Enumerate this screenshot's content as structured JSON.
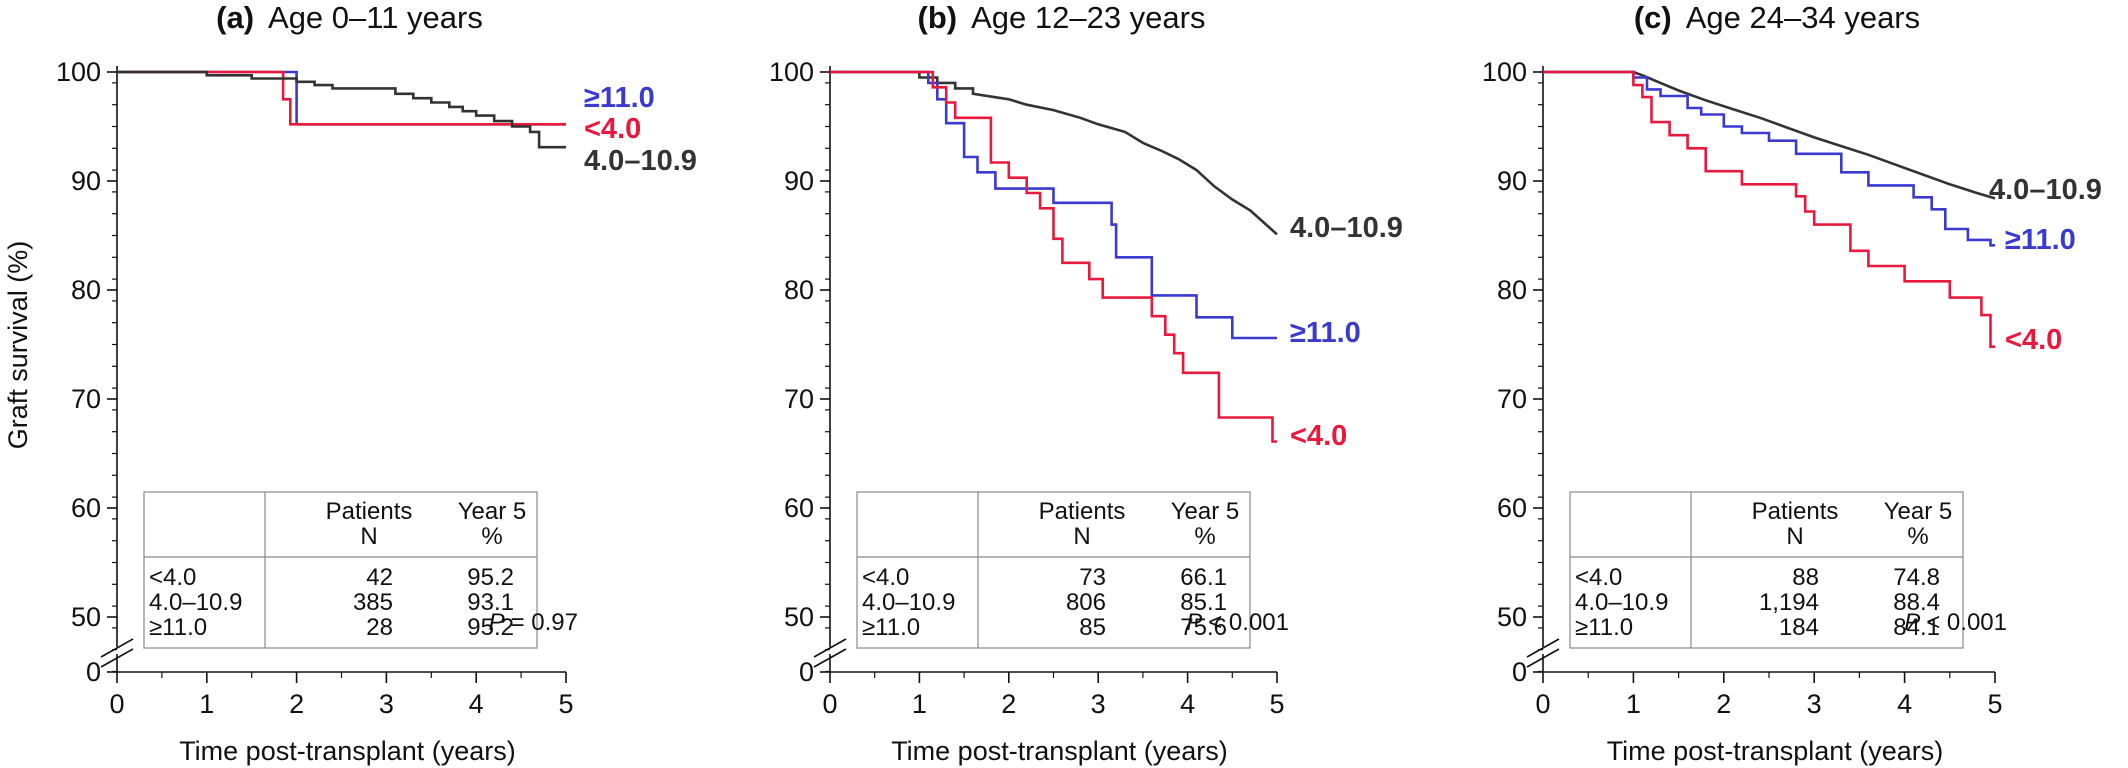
{
  "colors": {
    "lt4": "#e8193c",
    "mid": "#333333",
    "ge11": "#3a3ad0"
  },
  "y_axis_label": "Graft survival (%)",
  "x_axis_label": "Time post-transplant (years)",
  "chart_data": [
    {
      "type": "line",
      "letter": "(a)",
      "title": "Age 0–11 years",
      "xlabel": "Time post-transplant (years)",
      "ylabel": "Graft survival (%)",
      "xlim": [
        0,
        5
      ],
      "ylim": [
        45,
        100
      ],
      "y_break": true,
      "xticks": [
        "0",
        "1",
        "2",
        "3",
        "4",
        "5"
      ],
      "yticks": [
        "50",
        "60",
        "70",
        "80",
        "90",
        "100"
      ],
      "series": [
        {
          "name": "≥11.0",
          "color": "ge11",
          "points": [
            [
              0,
              100
            ],
            [
              2.0,
              100
            ],
            [
              2.0,
              95.2
            ],
            [
              5,
              95.2
            ]
          ]
        },
        {
          "name": "<4.0",
          "color": "lt4",
          "points": [
            [
              0,
              100
            ],
            [
              1.85,
              100
            ],
            [
              1.85,
              97.5
            ],
            [
              1.93,
              97.5
            ],
            [
              1.93,
              95.2
            ],
            [
              5,
              95.2
            ]
          ]
        },
        {
          "name": "4.0–10.9",
          "color": "mid",
          "points": [
            [
              0,
              100
            ],
            [
              1.0,
              100
            ],
            [
              1.0,
              99.7
            ],
            [
              1.5,
              99.7
            ],
            [
              1.5,
              99.4
            ],
            [
              2.0,
              99.4
            ],
            [
              2.0,
              99.1
            ],
            [
              2.2,
              99.1
            ],
            [
              2.2,
              98.8
            ],
            [
              2.4,
              98.8
            ],
            [
              2.4,
              98.5
            ],
            [
              3.1,
              98.5
            ],
            [
              3.1,
              98.0
            ],
            [
              3.3,
              98.0
            ],
            [
              3.3,
              97.6
            ],
            [
              3.5,
              97.6
            ],
            [
              3.5,
              97.2
            ],
            [
              3.7,
              97.2
            ],
            [
              3.7,
              96.8
            ],
            [
              3.85,
              96.8
            ],
            [
              3.85,
              96.4
            ],
            [
              4.0,
              96.4
            ],
            [
              4.0,
              96.0
            ],
            [
              4.2,
              96.0
            ],
            [
              4.2,
              95.5
            ],
            [
              4.4,
              95.5
            ],
            [
              4.4,
              95.0
            ],
            [
              4.6,
              95.0
            ],
            [
              4.6,
              94.5
            ],
            [
              4.7,
              94.5
            ],
            [
              4.7,
              93.1
            ],
            [
              5,
              93.1
            ]
          ]
        }
      ],
      "table": {
        "headers": [
          "",
          "Patients\nN",
          "Year 5\n%"
        ],
        "rows": [
          [
            "<4.0",
            "42",
            "95.2"
          ],
          [
            "4.0–10.9",
            "385",
            "93.1"
          ],
          [
            "≥11.0",
            "28",
            "95.2"
          ]
        ]
      },
      "p_value": "= 0.97"
    },
    {
      "type": "line",
      "letter": "(b)",
      "title": "Age 12–23 years",
      "xlabel": "Time post-transplant (years)",
      "xlim": [
        0,
        5
      ],
      "ylim": [
        45,
        100
      ],
      "y_break": true,
      "xticks": [
        "0",
        "1",
        "2",
        "3",
        "4",
        "5"
      ],
      "yticks": [
        "50",
        "60",
        "70",
        "80",
        "90",
        "100"
      ],
      "series": [
        {
          "name": "4.0–10.9",
          "color": "mid",
          "points": [
            [
              0,
              100
            ],
            [
              1.0,
              100
            ],
            [
              1.0,
              99.5
            ],
            [
              1.2,
              99.5
            ],
            [
              1.2,
              99.0
            ],
            [
              1.4,
              99.0
            ],
            [
              1.4,
              98.5
            ],
            [
              1.6,
              98.5
            ],
            [
              1.6,
              98.0
            ],
            [
              2.0,
              97.5
            ],
            [
              2.2,
              97.0
            ],
            [
              2.5,
              96.5
            ],
            [
              2.8,
              95.8
            ],
            [
              3.0,
              95.2
            ],
            [
              3.3,
              94.5
            ],
            [
              3.5,
              93.5
            ],
            [
              3.7,
              92.8
            ],
            [
              3.9,
              92.0
            ],
            [
              4.1,
              91.0
            ],
            [
              4.3,
              89.5
            ],
            [
              4.5,
              88.3
            ],
            [
              4.7,
              87.3
            ],
            [
              4.85,
              86.2
            ],
            [
              5.0,
              85.1
            ]
          ]
        },
        {
          "name": "≥11.0",
          "color": "ge11",
          "points": [
            [
              0,
              100
            ],
            [
              1.1,
              100
            ],
            [
              1.1,
              99
            ],
            [
              1.2,
              99
            ],
            [
              1.2,
              97.5
            ],
            [
              1.3,
              97.5
            ],
            [
              1.3,
              95.3
            ],
            [
              1.5,
              95.3
            ],
            [
              1.5,
              92.2
            ],
            [
              1.65,
              92.2
            ],
            [
              1.65,
              90.8
            ],
            [
              1.85,
              90.8
            ],
            [
              1.85,
              89.3
            ],
            [
              2.5,
              89.3
            ],
            [
              2.5,
              88.0
            ],
            [
              3.15,
              88.0
            ],
            [
              3.15,
              86.0
            ],
            [
              3.2,
              86.0
            ],
            [
              3.2,
              83.0
            ],
            [
              3.6,
              83.0
            ],
            [
              3.6,
              79.5
            ],
            [
              4.1,
              79.5
            ],
            [
              4.1,
              77.5
            ],
            [
              4.5,
              77.5
            ],
            [
              4.5,
              75.6
            ],
            [
              5,
              75.6
            ]
          ]
        },
        {
          "name": "<4.0",
          "color": "lt4",
          "points": [
            [
              0,
              100
            ],
            [
              1.15,
              100
            ],
            [
              1.15,
              98.6
            ],
            [
              1.3,
              98.6
            ],
            [
              1.3,
              97.2
            ],
            [
              1.4,
              97.2
            ],
            [
              1.4,
              95.8
            ],
            [
              1.8,
              95.8
            ],
            [
              1.8,
              91.7
            ],
            [
              2.0,
              91.7
            ],
            [
              2.0,
              90.3
            ],
            [
              2.2,
              90.3
            ],
            [
              2.2,
              88.9
            ],
            [
              2.35,
              88.9
            ],
            [
              2.35,
              87.5
            ],
            [
              2.5,
              87.5
            ],
            [
              2.5,
              84.7
            ],
            [
              2.6,
              84.7
            ],
            [
              2.6,
              82.5
            ],
            [
              2.9,
              82.5
            ],
            [
              2.9,
              81.0
            ],
            [
              3.05,
              81.0
            ],
            [
              3.05,
              79.3
            ],
            [
              3.6,
              79.3
            ],
            [
              3.6,
              77.6
            ],
            [
              3.75,
              77.6
            ],
            [
              3.75,
              75.9
            ],
            [
              3.85,
              75.9
            ],
            [
              3.85,
              74.2
            ],
            [
              3.95,
              74.2
            ],
            [
              3.95,
              72.4
            ],
            [
              4.35,
              72.4
            ],
            [
              4.35,
              68.3
            ],
            [
              4.95,
              68.3
            ],
            [
              4.95,
              66.1
            ],
            [
              5,
              66.1
            ]
          ]
        }
      ],
      "table": {
        "headers": [
          "",
          "Patients\nN",
          "Year 5\n%"
        ],
        "rows": [
          [
            "<4.0",
            "73",
            "66.1"
          ],
          [
            "4.0–10.9",
            "806",
            "85.1"
          ],
          [
            "≥11.0",
            "85",
            "75.6"
          ]
        ]
      },
      "p_value": "< 0.001"
    },
    {
      "type": "line",
      "letter": "(c)",
      "title": "Age 24–34 years",
      "xlabel": "Time post-transplant (years)",
      "xlim": [
        0,
        5
      ],
      "ylim": [
        45,
        100
      ],
      "y_break": true,
      "xticks": [
        "0",
        "1",
        "2",
        "3",
        "4",
        "5"
      ],
      "yticks": [
        "50",
        "60",
        "70",
        "80",
        "90",
        "100"
      ],
      "series": [
        {
          "name": "4.0–10.9",
          "color": "mid",
          "points": [
            [
              0,
              100
            ],
            [
              1.0,
              100
            ],
            [
              1.1,
              99.7
            ],
            [
              1.3,
              99.0
            ],
            [
              1.5,
              98.3
            ],
            [
              1.8,
              97.4
            ],
            [
              2.1,
              96.6
            ],
            [
              2.4,
              95.8
            ],
            [
              2.7,
              94.9
            ],
            [
              3.0,
              94.0
            ],
            [
              3.3,
              93.2
            ],
            [
              3.6,
              92.4
            ],
            [
              3.9,
              91.5
            ],
            [
              4.2,
              90.6
            ],
            [
              4.5,
              89.7
            ],
            [
              4.8,
              88.9
            ],
            [
              5.0,
              88.4
            ]
          ]
        },
        {
          "name": "≥11.0",
          "color": "ge11",
          "points": [
            [
              0,
              100
            ],
            [
              1.0,
              100
            ],
            [
              1.0,
              99.5
            ],
            [
              1.15,
              99.5
            ],
            [
              1.15,
              98.4
            ],
            [
              1.3,
              98.4
            ],
            [
              1.3,
              97.8
            ],
            [
              1.6,
              97.8
            ],
            [
              1.6,
              96.7
            ],
            [
              1.75,
              96.7
            ],
            [
              1.75,
              96.1
            ],
            [
              2.0,
              96.1
            ],
            [
              2.0,
              95.0
            ],
            [
              2.2,
              95.0
            ],
            [
              2.2,
              94.4
            ],
            [
              2.5,
              94.4
            ],
            [
              2.5,
              93.7
            ],
            [
              2.8,
              93.7
            ],
            [
              2.8,
              92.5
            ],
            [
              3.3,
              92.5
            ],
            [
              3.3,
              90.8
            ],
            [
              3.6,
              90.8
            ],
            [
              3.6,
              89.6
            ],
            [
              4.1,
              89.6
            ],
            [
              4.1,
              88.5
            ],
            [
              4.3,
              88.5
            ],
            [
              4.3,
              87.4
            ],
            [
              4.45,
              87.4
            ],
            [
              4.45,
              85.6
            ],
            [
              4.7,
              85.6
            ],
            [
              4.7,
              84.6
            ],
            [
              4.95,
              84.6
            ],
            [
              4.95,
              84.1
            ],
            [
              5,
              84.1
            ]
          ]
        },
        {
          "name": "<4.0",
          "color": "lt4",
          "points": [
            [
              0,
              100
            ],
            [
              1.0,
              100
            ],
            [
              1.0,
              98.8
            ],
            [
              1.1,
              98.8
            ],
            [
              1.1,
              97.7
            ],
            [
              1.2,
              97.7
            ],
            [
              1.2,
              95.4
            ],
            [
              1.4,
              95.4
            ],
            [
              1.4,
              94.2
            ],
            [
              1.6,
              94.2
            ],
            [
              1.6,
              93.0
            ],
            [
              1.8,
              93.0
            ],
            [
              1.8,
              90.9
            ],
            [
              2.2,
              90.9
            ],
            [
              2.2,
              89.7
            ],
            [
              2.8,
              89.7
            ],
            [
              2.8,
              88.6
            ],
            [
              2.9,
              88.6
            ],
            [
              2.9,
              87.2
            ],
            [
              3.0,
              87.2
            ],
            [
              3.0,
              86.0
            ],
            [
              3.4,
              86.0
            ],
            [
              3.4,
              83.6
            ],
            [
              3.6,
              83.6
            ],
            [
              3.6,
              82.2
            ],
            [
              4.0,
              82.2
            ],
            [
              4.0,
              80.8
            ],
            [
              4.5,
              80.8
            ],
            [
              4.5,
              79.3
            ],
            [
              4.85,
              79.3
            ],
            [
              4.85,
              77.7
            ],
            [
              4.95,
              77.7
            ],
            [
              4.95,
              74.8
            ],
            [
              5,
              74.8
            ]
          ]
        }
      ],
      "table": {
        "headers": [
          "",
          "Patients\nN",
          "Year 5\n%"
        ],
        "rows": [
          [
            "<4.0",
            "88",
            "74.8"
          ],
          [
            "4.0–10.9",
            "1,194",
            "88.4"
          ],
          [
            "≥11.0",
            "184",
            "84.1"
          ]
        ]
      },
      "p_value": "< 0.001"
    }
  ]
}
